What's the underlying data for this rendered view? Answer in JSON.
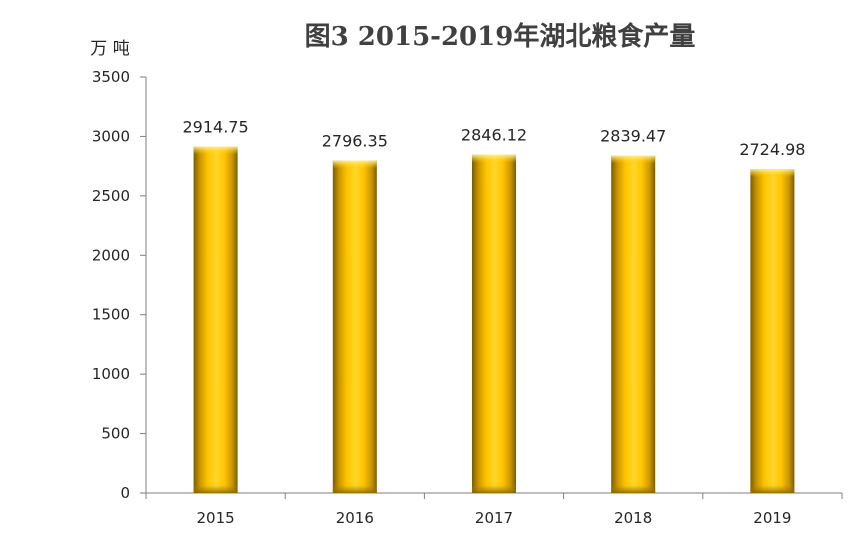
{
  "chart_data": {
    "type": "bar",
    "title": "图3  2015-2019年湖北粮食产量",
    "ylabel": "万 吨",
    "xlabel": "",
    "categories": [
      "2015",
      "2016",
      "2017",
      "2018",
      "2019"
    ],
    "values": [
      2914.75,
      2796.35,
      2846.12,
      2839.47,
      2724.98
    ],
    "data_labels": [
      "2914.75",
      "2796.35",
      "2846.12",
      "2839.47",
      "2724.98"
    ],
    "ylim": [
      0,
      3500
    ],
    "yticks": [
      0,
      500,
      1000,
      1500,
      2000,
      2500,
      3000,
      3500
    ],
    "ytick_labels": [
      "0",
      "500",
      "1000",
      "1500",
      "2000",
      "2500",
      "3000",
      "3500"
    ],
    "grid": false,
    "legend": "none",
    "bar_color": "#FFC000"
  }
}
